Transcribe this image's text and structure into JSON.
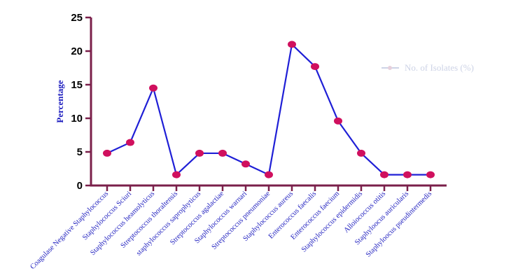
{
  "chart_data": {
    "type": "line",
    "title": "",
    "xlabel": "",
    "ylabel": "Percentage",
    "ylim": [
      0,
      25
    ],
    "yticks": [
      0,
      5,
      10,
      15,
      20,
      25
    ],
    "grid": false,
    "categories": [
      "Coagulase Negative Staphylococcus",
      "Staphylococcus Sciuri",
      "Staphylococcus heamolyticus",
      "Streptococcus thoraltensis",
      "staphylococcus saprophyticus",
      "Streptococcus agalactiae",
      "Staphylococcus warnari",
      "Streptococcus pneumoniae",
      "Staphylococcus aureus",
      "Enterococcus faecalis",
      "Enterococcus faecium",
      "Staphylococcus epidermidis",
      "Alloiococcus otitis",
      "Staphyloocus auricularis",
      "Staphyloocus pseudintermedis"
    ],
    "series": [
      {
        "name": "No. of Isolates (%)",
        "values": [
          4.8,
          6.4,
          14.5,
          1.6,
          4.8,
          4.8,
          3.2,
          1.6,
          21.0,
          17.7,
          9.6,
          4.8,
          1.6,
          1.6,
          1.6
        ]
      }
    ],
    "legend": "right",
    "colors": {
      "axis": "#7a1f4a",
      "line": "#1f1fd6",
      "marker": "#d0105e",
      "tick_label": "#1f1fbf"
    }
  }
}
